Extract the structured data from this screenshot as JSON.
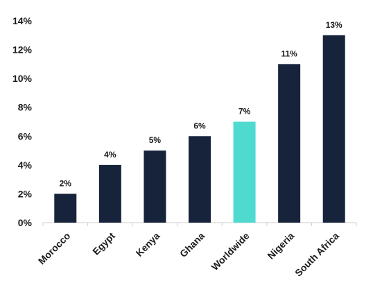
{
  "chart_data": {
    "type": "bar",
    "categories": [
      "Morocco",
      "Egypt",
      "Kenya",
      "Ghana",
      "Worldwide",
      "Nigeria",
      "South Africa"
    ],
    "values": [
      2,
      4,
      5,
      6,
      7,
      11,
      13
    ],
    "data_labels": [
      "2%",
      "4%",
      "5%",
      "6%",
      "7%",
      "11%",
      "13%"
    ],
    "y_ticks": [
      "0%",
      "2%",
      "4%",
      "6%",
      "8%",
      "10%",
      "12%",
      "14%"
    ],
    "ylim": [
      0,
      14
    ],
    "grid": false,
    "legend": "none",
    "colors": {
      "default_bar": "#16233b",
      "highlight_bar": "#4fdad0",
      "highlight_category": "Worldwide",
      "axis": "#cfcfcf",
      "text": "#1a1a1a"
    }
  }
}
